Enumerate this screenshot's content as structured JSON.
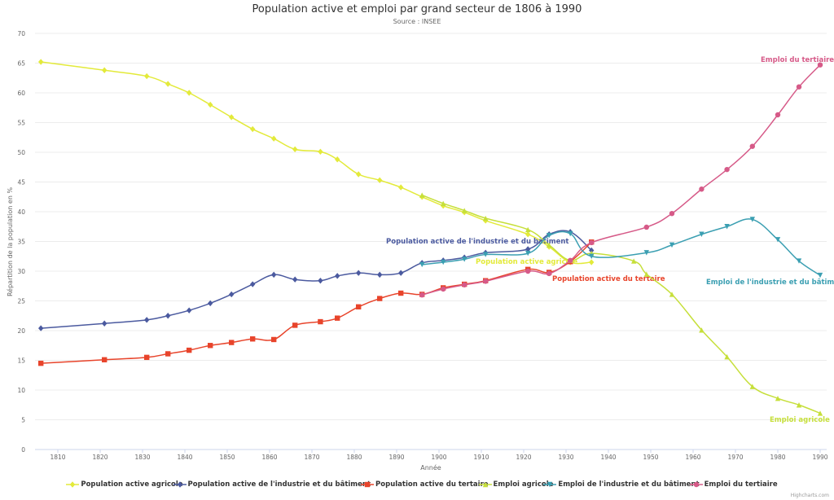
{
  "chart_data": {
    "type": "line",
    "title": "Population active et emploi par grand secteur de 1806 à 1990",
    "subtitle": "Source : INSEE",
    "xlabel": "Année",
    "ylabel": "Répartition de la population en %",
    "xlim": [
      1806,
      1990
    ],
    "ylim": [
      0,
      70
    ],
    "xticks": [
      "1810",
      "1820",
      "1830",
      "1840",
      "1850",
      "1860",
      "1870",
      "1880",
      "1890",
      "1900",
      "1910",
      "1920",
      "1930",
      "1940",
      "1950",
      "1960",
      "1970",
      "1980",
      "1990"
    ],
    "yticks": [
      "0",
      "5",
      "10",
      "15",
      "20",
      "25",
      "30",
      "35",
      "40",
      "45",
      "50",
      "55",
      "60",
      "65",
      "70"
    ],
    "grid": true,
    "legend": "bottom",
    "credits": "Highcharts.com",
    "series": [
      {
        "name": "Population active agricole",
        "color": "#e3ea3a",
        "marker": "diamond",
        "x": [
          1806,
          1821,
          1831,
          1836,
          1841,
          1846,
          1851,
          1856,
          1861,
          1866,
          1872,
          1876,
          1881,
          1886,
          1891,
          1896,
          1901,
          1906,
          1911,
          1921,
          1926,
          1931,
          1936
        ],
        "y": [
          65.2,
          63.8,
          62.8,
          61.5,
          60.0,
          58.0,
          55.9,
          53.9,
          52.3,
          50.5,
          50.1,
          48.8,
          46.3,
          45.3,
          44.1,
          42.5,
          41.0,
          39.9,
          38.5,
          36.2,
          34.1,
          31.5,
          31.5
        ]
      },
      {
        "name": "Population active de l'industrie et du bâtiment",
        "color": "#4b5a9f",
        "marker": "diamond",
        "x": [
          1806,
          1821,
          1831,
          1836,
          1841,
          1846,
          1851,
          1856,
          1861,
          1866,
          1872,
          1876,
          1881,
          1886,
          1891,
          1896,
          1901,
          1906,
          1911,
          1921,
          1926,
          1931,
          1936
        ],
        "y": [
          20.4,
          21.2,
          21.8,
          22.5,
          23.4,
          24.6,
          26.1,
          27.8,
          29.4,
          28.6,
          28.4,
          29.2,
          29.7,
          29.4,
          29.7,
          31.4,
          31.8,
          32.3,
          33.1,
          33.7,
          36.2,
          36.6,
          33.5
        ]
      },
      {
        "name": "Population active du tertaire",
        "color": "#e8442b",
        "marker": "square",
        "x": [
          1806,
          1821,
          1831,
          1836,
          1841,
          1846,
          1851,
          1856,
          1861,
          1866,
          1872,
          1876,
          1881,
          1886,
          1891,
          1896,
          1901,
          1906,
          1911,
          1921,
          1926,
          1931,
          1936
        ],
        "y": [
          14.5,
          15.1,
          15.5,
          16.1,
          16.7,
          17.5,
          18.0,
          18.6,
          18.5,
          20.9,
          21.5,
          22.1,
          24.0,
          25.4,
          26.3,
          26.1,
          27.2,
          27.8,
          28.4,
          30.3,
          29.8,
          31.6,
          34.9
        ]
      },
      {
        "name": "Emploi agricole",
        "color": "#c6df3a",
        "marker": "triangle",
        "x": [
          1896,
          1901,
          1906,
          1911,
          1921,
          1926,
          1931,
          1936,
          1946,
          1949,
          1955,
          1962,
          1968,
          1974,
          1980,
          1985,
          1990
        ],
        "y": [
          42.8,
          41.4,
          40.2,
          38.9,
          37.0,
          34.4,
          31.8,
          33.0,
          31.7,
          29.5,
          26.1,
          20.1,
          15.6,
          10.6,
          8.6,
          7.5,
          6.1
        ]
      },
      {
        "name": "Emploi de l'industrie et du bâtiment",
        "color": "#3b9fb2",
        "marker": "triangle-down",
        "x": [
          1896,
          1901,
          1906,
          1911,
          1921,
          1926,
          1931,
          1936,
          1949,
          1955,
          1962,
          1968,
          1974,
          1980,
          1985,
          1990
        ],
        "y": [
          31.1,
          31.5,
          32.0,
          32.8,
          33.0,
          36.0,
          36.3,
          32.5,
          33.1,
          34.4,
          36.2,
          37.5,
          38.7,
          35.3,
          31.7,
          29.3
        ]
      },
      {
        "name": "Emploi du tertiaire",
        "color": "#d65a88",
        "marker": "circle",
        "x": [
          1896,
          1901,
          1906,
          1911,
          1921,
          1926,
          1931,
          1936,
          1949,
          1955,
          1962,
          1968,
          1974,
          1980,
          1985,
          1990
        ],
        "y": [
          26.0,
          27.0,
          27.7,
          28.3,
          30.0,
          29.6,
          31.8,
          34.8,
          37.4,
          39.7,
          43.8,
          47.1,
          51.0,
          56.3,
          61.0,
          64.7
        ]
      }
    ]
  }
}
